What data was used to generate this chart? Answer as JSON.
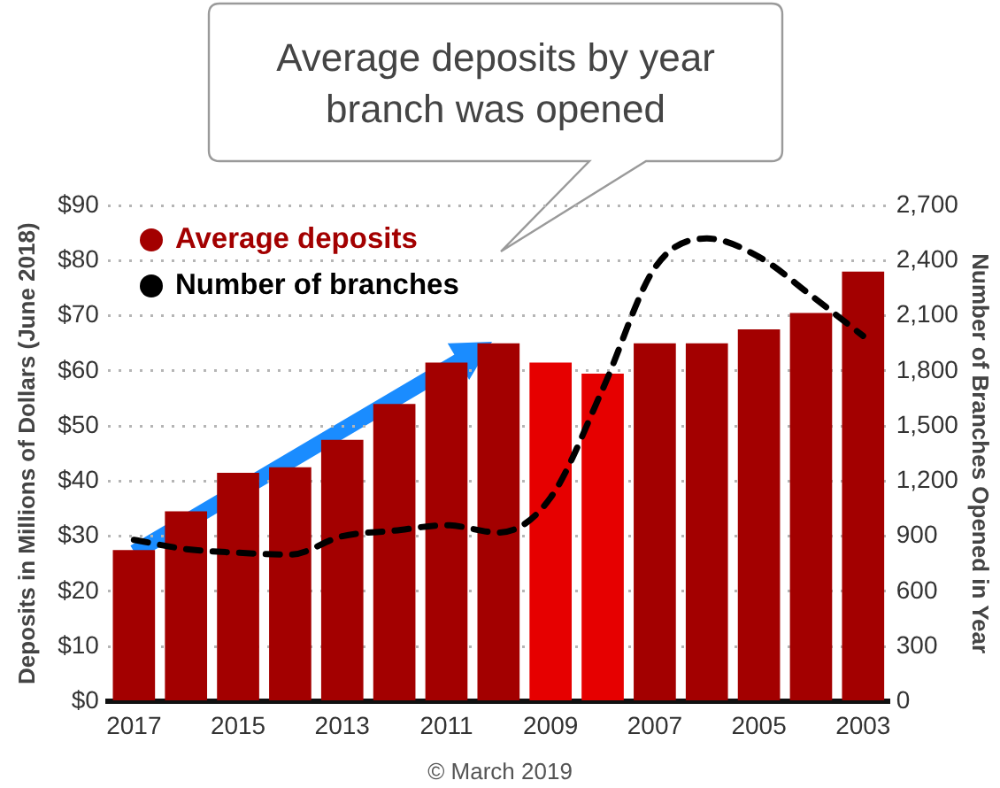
{
  "chart_data": {
    "type": "bar",
    "title": "Average deposits by year branch was opened",
    "ylabel": "Deposits in Millions of Dollars (June 2018)",
    "y2label": "Number of Branches Opened in Year",
    "annotations": [
      "© March 2019"
    ],
    "categories": [
      "2017",
      null,
      "2015",
      null,
      "2013",
      null,
      "2011",
      null,
      "2009",
      null,
      "2007",
      null,
      "2005",
      null,
      "2003"
    ],
    "series": [
      {
        "name": "Average deposits",
        "color": "#a30000",
        "colors": [
          "#a30000",
          "#a30000",
          "#a30000",
          "#a30000",
          "#a30000",
          "#a30000",
          "#a30000",
          "#a30000",
          "#e60000",
          "#e60000",
          "#a30000",
          "#a30000",
          "#a30000",
          "#a30000",
          "#a30000"
        ],
        "values": [
          27.5,
          34.5,
          41.5,
          42.5,
          47.5,
          54,
          61.5,
          65,
          61.5,
          59.5,
          65,
          65,
          67.5,
          70.5,
          78
        ]
      },
      {
        "name": "Number of branches",
        "type": "line",
        "axis": "y2",
        "color": "#000000",
        "line_style": "dashed",
        "values": [
          880,
          830,
          810,
          800,
          900,
          930,
          960,
          920,
          1110,
          1700,
          2360,
          2520,
          2420,
          2210,
          1990
        ]
      }
    ],
    "ylim": [
      0,
      90
    ],
    "yticks": [
      {
        "value": 0,
        "label": "$0"
      },
      {
        "value": 10,
        "label": "$10"
      },
      {
        "value": 20,
        "label": "$20"
      },
      {
        "value": 30,
        "label": "$30"
      },
      {
        "value": 40,
        "label": "$40"
      },
      {
        "value": 50,
        "label": "$50"
      },
      {
        "value": 60,
        "label": "$60"
      },
      {
        "value": 70,
        "label": "$70"
      },
      {
        "value": 80,
        "label": "$80"
      },
      {
        "value": 90,
        "label": "$90"
      }
    ],
    "y2lim": [
      0,
      2700
    ],
    "y2ticks": [
      0,
      300,
      600,
      900,
      {
        "value": 1200,
        "label": "1,200"
      },
      {
        "value": 1500,
        "label": "1,500"
      },
      {
        "value": 1800,
        "label": "1,800"
      },
      {
        "value": 2100,
        "label": "2,100"
      },
      {
        "value": 2400,
        "label": "2,400"
      },
      {
        "value": 2700,
        "label": "2,700"
      }
    ],
    "grid": "y",
    "legend": "top left"
  }
}
